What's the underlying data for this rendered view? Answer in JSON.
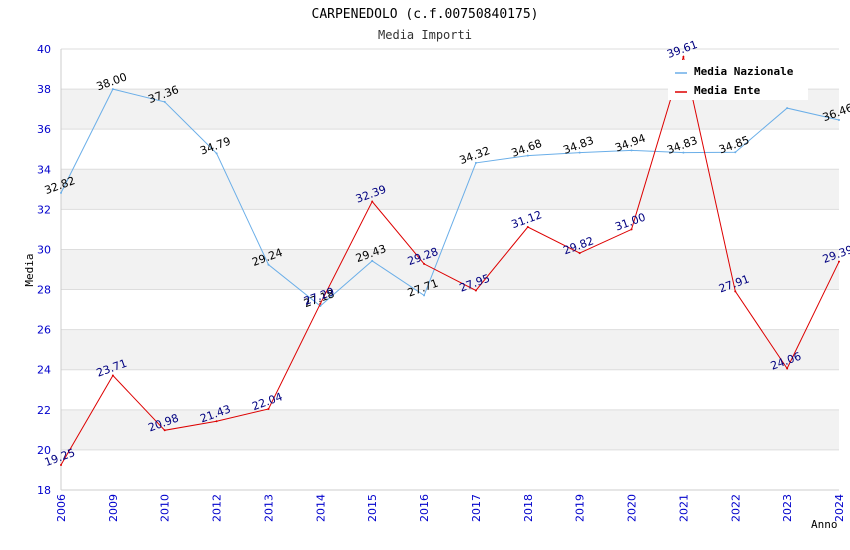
{
  "chart_data": {
    "type": "line",
    "title": "CARPENEDOLO (c.f.00750840175)",
    "subtitle": "Media Importi",
    "xlabel": "Anno",
    "ylabel": "Media",
    "ylim": [
      18,
      40
    ],
    "yticks": [
      18,
      20,
      22,
      24,
      26,
      28,
      30,
      32,
      34,
      36,
      38,
      40
    ],
    "grid": "horizontal alternating bands",
    "legend_position": "top-right",
    "categories": [
      "2006",
      "2009",
      "2010",
      "2012",
      "2013",
      "2014",
      "2015",
      "2016",
      "2017",
      "2018",
      "2019",
      "2020",
      "2021",
      "2022",
      "2023",
      "2024"
    ],
    "series": [
      {
        "name": "Media Nazionale",
        "color": "#6aaee8",
        "label_color": "#000000",
        "values": [
          32.82,
          38.0,
          37.36,
          34.79,
          29.24,
          27.18,
          29.43,
          27.71,
          34.32,
          34.68,
          34.83,
          34.94,
          34.83,
          34.85,
          37.05,
          36.46
        ],
        "labels": [
          "32.82",
          "38.00",
          "37.36",
          "34.79",
          "29.24",
          "27.18",
          "29.43",
          "27.71",
          "34.32",
          "34.68",
          "34.83",
          "34.94",
          "34.83",
          "34.85",
          "",
          "36.46"
        ]
      },
      {
        "name": "Media Ente",
        "color": "#dd0000",
        "label_color": "#000080",
        "values": [
          19.25,
          23.71,
          20.98,
          21.43,
          22.04,
          27.29,
          32.39,
          29.28,
          27.95,
          31.12,
          29.82,
          31.0,
          39.61,
          27.91,
          24.06,
          29.39
        ],
        "labels": [
          "19.25",
          "23.71",
          "20.98",
          "21.43",
          "22.04",
          "27.29",
          "32.39",
          "29.28",
          "27.95",
          "31.12",
          "29.82",
          "31.00",
          "39.61",
          "27.91",
          "24.06",
          "29.39"
        ]
      }
    ]
  }
}
